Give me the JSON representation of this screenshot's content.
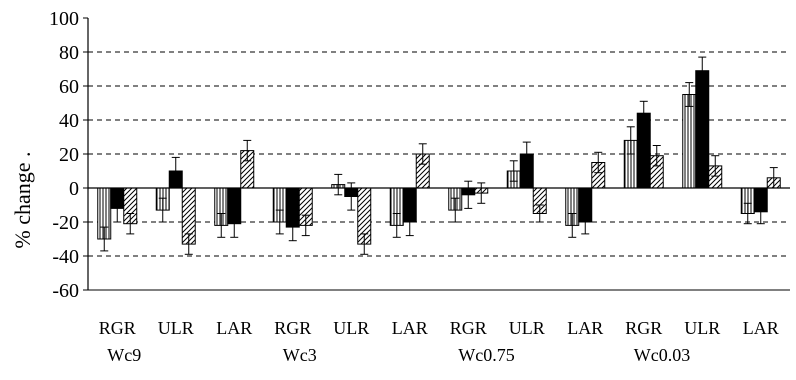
{
  "chart_data": {
    "type": "bar",
    "title": "",
    "ylabel": "% change .",
    "xlabel": "",
    "ylim": [
      -60,
      100
    ],
    "yticks": [
      -60,
      -40,
      -20,
      0,
      20,
      40,
      60,
      80,
      100
    ],
    "grid": "dashed horizontal lines at 20, 40, 60, 80 and at -20, -40",
    "categories": [
      "RGR",
      "ULR",
      "LAR",
      "RGR",
      "ULR",
      "LAR",
      "RGR",
      "ULR",
      "LAR",
      "RGR",
      "ULR",
      "LAR"
    ],
    "groups": [
      {
        "label": "Wc9",
        "start": 0,
        "end": 2
      },
      {
        "label": "Wc3",
        "start": 3,
        "end": 5
      },
      {
        "label": "Wc0.75",
        "start": 6,
        "end": 8
      },
      {
        "label": "Wc0.03",
        "start": 9,
        "end": 11
      }
    ],
    "series": [
      {
        "pattern": "vertical-stripes",
        "values": [
          -30,
          -13,
          -22,
          -20,
          2,
          -22,
          -13,
          10,
          -22,
          28,
          55,
          -15
        ],
        "errors": [
          7,
          7,
          7,
          7,
          6,
          7,
          7,
          6,
          7,
          8,
          7,
          6
        ]
      },
      {
        "pattern": "solid-black",
        "values": [
          -12,
          10,
          -21,
          -23,
          -5,
          -20,
          -4,
          20,
          -20,
          44,
          69,
          -14
        ],
        "errors": [
          8,
          8,
          8,
          8,
          8,
          8,
          8,
          7,
          7,
          7,
          8,
          7
        ]
      },
      {
        "pattern": "diagonal-hatch",
        "values": [
          -21,
          -33,
          22,
          -22,
          -33,
          20,
          -3,
          -15,
          15,
          19,
          13,
          6
        ],
        "errors": [
          6,
          6,
          6,
          6,
          6,
          6,
          6,
          5,
          6,
          6,
          6,
          6
        ]
      }
    ],
    "colors": {
      "axis": "#000000",
      "grid": "#000000",
      "solid": "#000000",
      "hatch": "#000000"
    }
  }
}
